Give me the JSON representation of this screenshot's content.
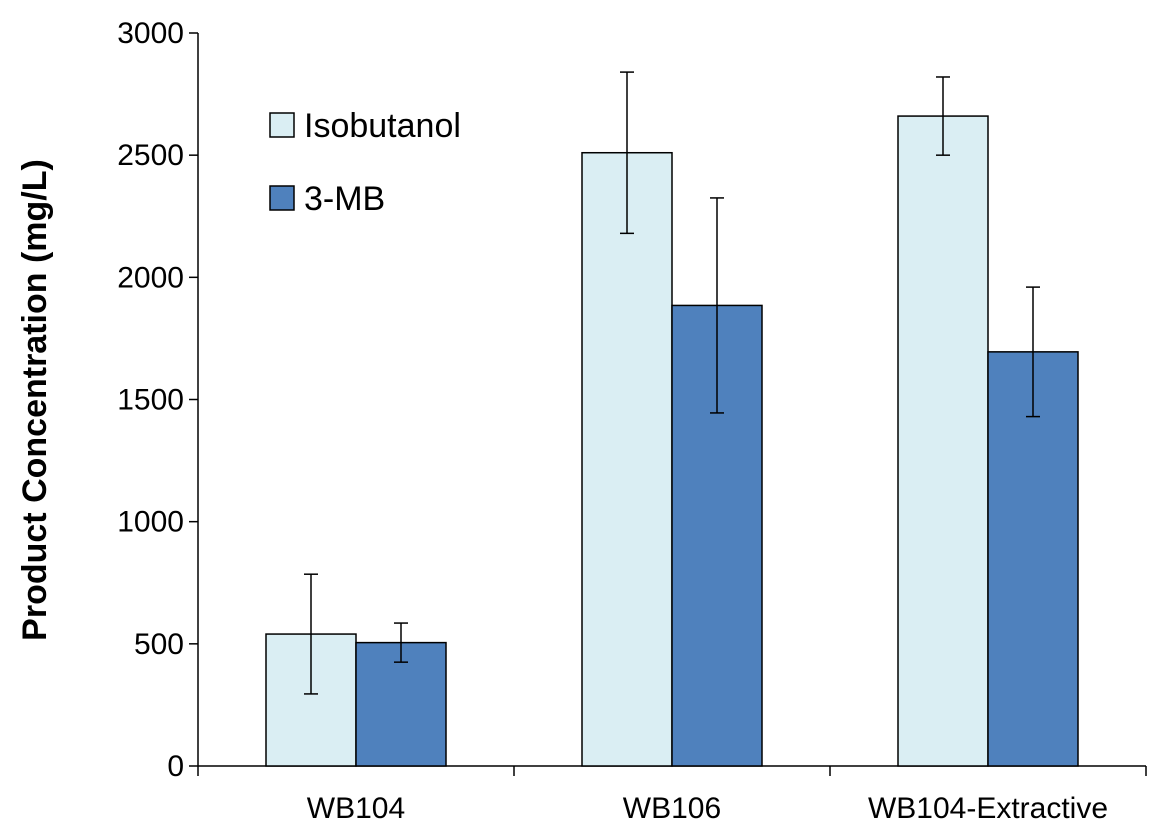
{
  "chart_data": {
    "type": "bar",
    "title": "",
    "xlabel": "",
    "ylabel": "Product Concentration (mg/L)",
    "ylim": [
      0,
      3000
    ],
    "yticks": [
      0,
      500,
      1000,
      1500,
      2000,
      2500,
      3000
    ],
    "ytick_labels": [
      "0",
      "500",
      "1000",
      "1500",
      "2000",
      "2500",
      "3000"
    ],
    "categories": [
      "WB104",
      "WB106",
      "WB104-Extractive"
    ],
    "series": [
      {
        "name": "Isobutanol",
        "values": [
          540,
          2510,
          2660
        ],
        "errors": [
          245,
          330,
          160
        ],
        "color": "#daeef3"
      },
      {
        "name": "3-MB",
        "values": [
          505,
          1885,
          1695
        ],
        "errors": [
          80,
          440,
          265
        ],
        "color": "#4f81bd"
      }
    ],
    "legend_position": "top-left",
    "grid": false
  }
}
